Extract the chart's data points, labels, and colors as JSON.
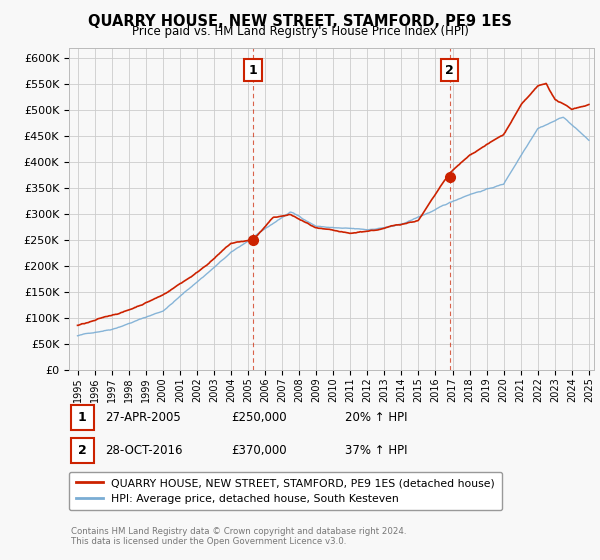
{
  "title": "QUARRY HOUSE, NEW STREET, STAMFORD, PE9 1ES",
  "subtitle": "Price paid vs. HM Land Registry's House Price Index (HPI)",
  "ylim": [
    0,
    620000
  ],
  "yticks": [
    0,
    50000,
    100000,
    150000,
    200000,
    250000,
    300000,
    350000,
    400000,
    450000,
    500000,
    550000,
    600000
  ],
  "ytick_labels": [
    "£0",
    "£50K",
    "£100K",
    "£150K",
    "£200K",
    "£250K",
    "£300K",
    "£350K",
    "£400K",
    "£450K",
    "£500K",
    "£550K",
    "£600K"
  ],
  "background_color": "#f8f8f8",
  "grid_color": "#cccccc",
  "red_line_color": "#cc2200",
  "blue_line_color": "#7aadd4",
  "vline_color": "#cc2200",
  "sale1_x": 2005.3,
  "sale1_y": 250000,
  "sale2_x": 2016.83,
  "sale2_y": 370000,
  "legend_red_label": "QUARRY HOUSE, NEW STREET, STAMFORD, PE9 1ES (detached house)",
  "legend_blue_label": "HPI: Average price, detached house, South Kesteven",
  "annotation1_date": "27-APR-2005",
  "annotation1_price": "£250,000",
  "annotation1_hpi": "20% ↑ HPI",
  "annotation2_date": "28-OCT-2016",
  "annotation2_price": "£370,000",
  "annotation2_hpi": "37% ↑ HPI",
  "footer": "Contains HM Land Registry data © Crown copyright and database right 2024.\nThis data is licensed under the Open Government Licence v3.0.",
  "xmin": 1994.5,
  "xmax": 2025.3
}
